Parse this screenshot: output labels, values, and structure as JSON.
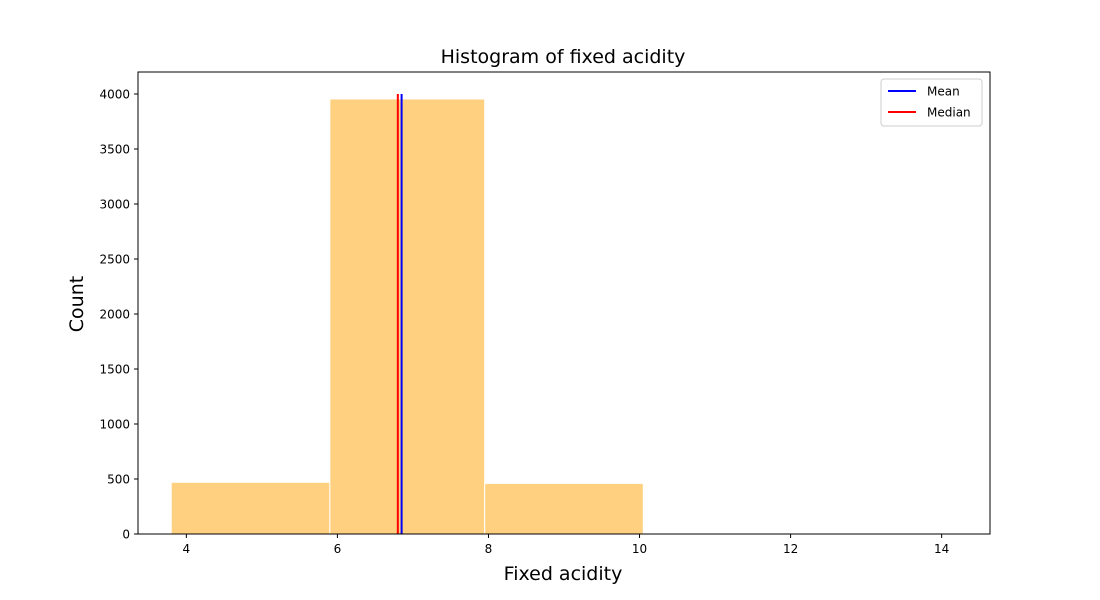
{
  "chart_data": {
    "type": "bar",
    "title": "Histogram of fixed acidity",
    "xlabel": "Fixed acidity",
    "ylabel": "Count",
    "xlim": [
      3.36,
      14.64
    ],
    "ylim": [
      0,
      4200
    ],
    "xticks": [
      4,
      6,
      8,
      10,
      12,
      14
    ],
    "yticks": [
      0,
      500,
      1000,
      1500,
      2000,
      2500,
      3000,
      3500,
      4000
    ],
    "bins": [
      {
        "x0": 3.8,
        "x1": 5.9,
        "count": 470
      },
      {
        "x0": 5.9,
        "x1": 7.95,
        "count": 3955
      },
      {
        "x0": 7.95,
        "x1": 10.05,
        "count": 460
      },
      {
        "x0": 10.05,
        "x1": 12.1,
        "count": 6
      },
      {
        "x0": 12.1,
        "x1": 14.2,
        "count": 1
      }
    ],
    "bar_color": "#ffd080",
    "bar_edge_color": "#ffffff",
    "lines": [
      {
        "name": "Mean",
        "x": 6.85,
        "y_top": 4000,
        "color": "#0000ff"
      },
      {
        "name": "Median",
        "x": 6.8,
        "y_top": 4000,
        "color": "#ff0000"
      }
    ],
    "legend": {
      "placement": "top-right",
      "entries": [
        {
          "label": "Mean",
          "color": "#0000ff"
        },
        {
          "label": "Median",
          "color": "#ff0000"
        }
      ]
    },
    "grid": false
  }
}
